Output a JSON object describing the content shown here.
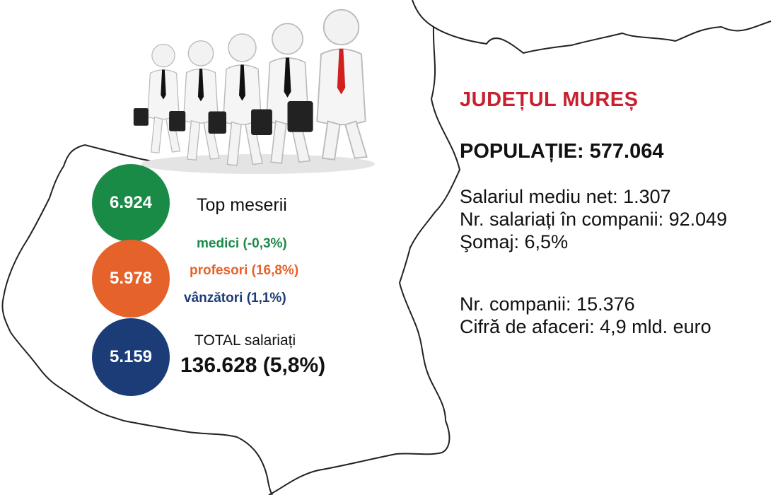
{
  "county": {
    "title": "JUDEȚUL MUREȘ",
    "title_color": "#c8202f",
    "population_text": "POPULAȚIE: 577.064"
  },
  "stats": {
    "salary_avg": "Salariul mediu net: 1.307",
    "employees_companies": "Nr. salariați în companii: 92.049",
    "unemployment": "Şomaj: 6,5%",
    "companies_count": "Nr. companii: 15.376",
    "turnover": "Cifră de afaceri: 4,9 mld. euro"
  },
  "circles": [
    {
      "value": "6.924",
      "color": "#1a8a47"
    },
    {
      "value": "5.978",
      "color": "#e5622a"
    },
    {
      "value": "5.159",
      "color": "#1c3c78"
    }
  ],
  "top_jobs": {
    "heading": "Top meserii",
    "items": [
      {
        "label": "medici (-0,3%)",
        "color": "#1a8a47"
      },
      {
        "label": "profesori (16,8%)",
        "color": "#e5622a"
      },
      {
        "label": "vânzători (1,1%)",
        "color": "#1c3c78"
      }
    ]
  },
  "total": {
    "label": "TOTAL salariați",
    "value": "136.628 (5,8%)"
  },
  "illustration": {
    "icon": "business-people-walking-icon",
    "tie_accent": "#d0201f"
  }
}
